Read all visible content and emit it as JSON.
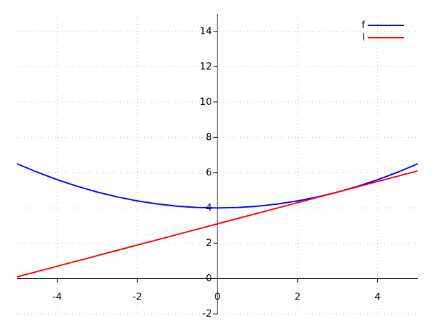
{
  "chart_data": {
    "type": "line",
    "x": [
      -5,
      -4.5,
      -4,
      -3.5,
      -3,
      -2.5,
      -2,
      -1.5,
      -1,
      -0.5,
      0,
      0.5,
      1,
      1.5,
      2,
      2.5,
      3,
      3.5,
      4,
      4.5,
      5
    ],
    "series": [
      {
        "name": "f",
        "color": "#0000ff",
        "values": [
          6.5,
          6.025,
          5.6,
          5.225,
          4.9,
          4.625,
          4.4,
          4.225,
          4.1,
          4.025,
          4,
          4.025,
          4.1,
          4.225,
          4.4,
          4.625,
          4.9,
          5.225,
          5.6,
          6.025,
          6.5
        ]
      },
      {
        "name": "l",
        "color": "#ff0000",
        "values": [
          0.1,
          0.4,
          0.7,
          1.0,
          1.3,
          1.6,
          1.9,
          2.2,
          2.5,
          2.8,
          3.1,
          3.4,
          3.7,
          4.0,
          4.3,
          4.6,
          4.9,
          5.2,
          5.5,
          5.8,
          6.1
        ]
      }
    ],
    "xlim": [
      -5,
      5
    ],
    "ylim": [
      -2,
      15
    ],
    "xticks": [
      -4,
      -2,
      0,
      2,
      4
    ],
    "yticks": [
      -2,
      0,
      2,
      4,
      6,
      8,
      10,
      12,
      14
    ],
    "grid": true,
    "legend": "top-right"
  }
}
